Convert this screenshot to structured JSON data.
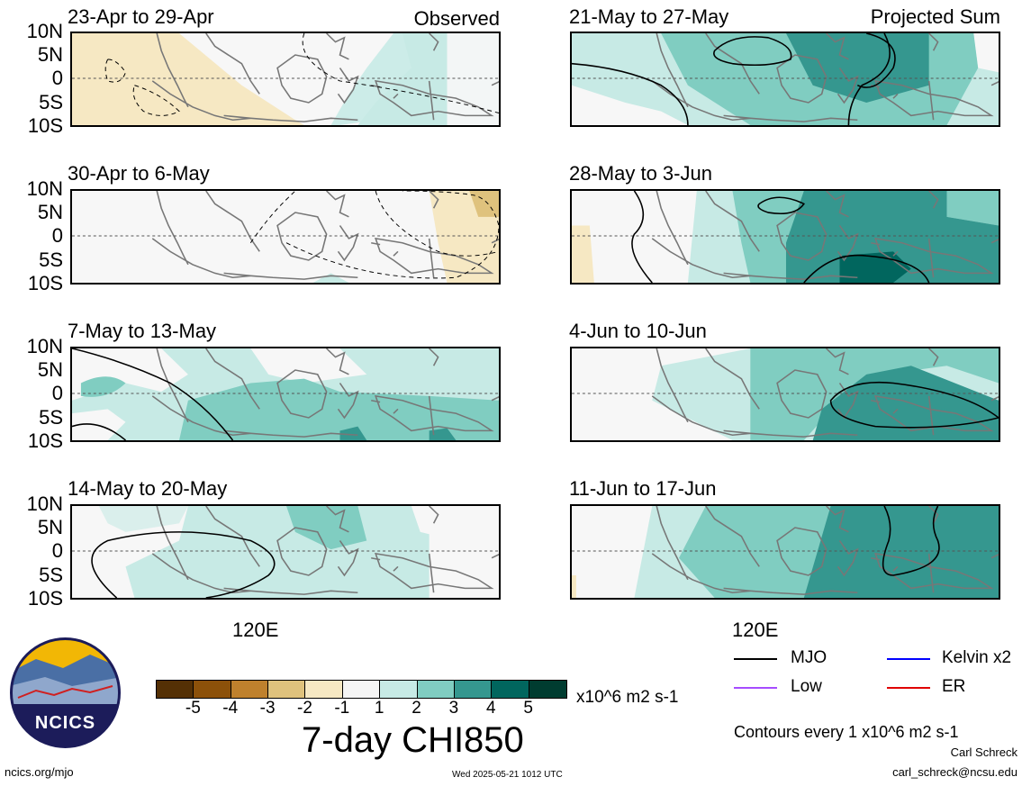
{
  "panels_left": [
    {
      "title": "23-Apr to 29-Apr",
      "corner": "Observed"
    },
    {
      "title": "30-Apr to 6-May",
      "corner": ""
    },
    {
      "title": "7-May to 13-May",
      "corner": ""
    },
    {
      "title": "14-May to 20-May",
      "corner": ""
    }
  ],
  "panels_right": [
    {
      "title": "21-May to 27-May",
      "corner": "Projected Sum"
    },
    {
      "title": "28-May to 3-Jun",
      "corner": ""
    },
    {
      "title": "4-Jun to 10-Jun",
      "corner": ""
    },
    {
      "title": "11-Jun to 17-Jun",
      "corner": ""
    }
  ],
  "lat_labels": [
    "10N",
    "5N",
    "0",
    "5S",
    "10S"
  ],
  "x_axis_label": "120E",
  "colorbar": {
    "colors": [
      "#543005",
      "#8c510a",
      "#bf812d",
      "#dfc27d",
      "#f6e8c3",
      "#f5f5f5",
      "#c7eae5",
      "#80cdc1",
      "#35978f",
      "#01665e",
      "#003c30"
    ],
    "ticks": [
      "-5",
      "-4",
      "-3",
      "-2",
      "-1",
      "1",
      "2",
      "3",
      "4",
      "5"
    ],
    "units": "x10^6 m2 s-1",
    "title": "7-day CHI850"
  },
  "legend": {
    "items": [
      {
        "label": "MJO",
        "color": "#000000"
      },
      {
        "label": "Kelvin x2",
        "color": "#0000ff"
      },
      {
        "label": "Low",
        "color": "#a64dff"
      },
      {
        "label": "ER",
        "color": "#e00000"
      }
    ],
    "contour_note": "Contours every 1 x10^6 m2 s-1"
  },
  "footer": {
    "logo_text": "NCICS",
    "url": "ncics.org/mjo",
    "timestamp": "Wed 2025-05-21 1012 UTC",
    "author": "Carl Schreck",
    "email": "carl_schreck@ncsu.edu"
  }
}
